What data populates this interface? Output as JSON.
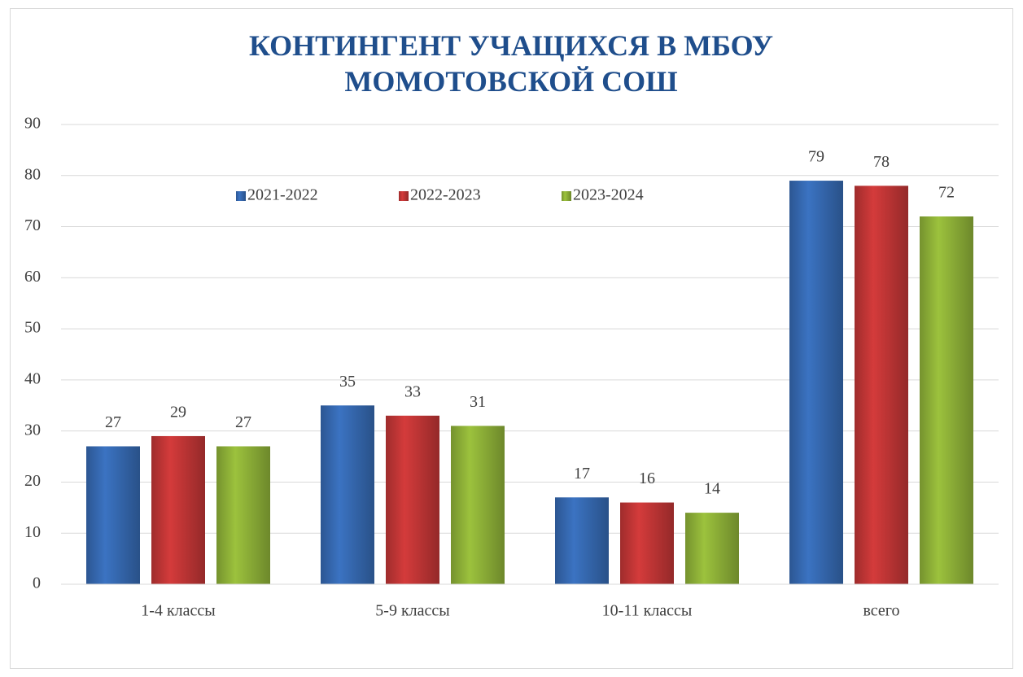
{
  "chart_data": {
    "type": "bar",
    "title": "КОНТИНГЕНТ УЧАЩИХСЯ В МБОУ МОМОТОВСКОЙ СОШ",
    "categories": [
      "1-4 классы",
      "5-9 классы",
      "10-11 классы",
      "всего"
    ],
    "series": [
      {
        "name": "2021-2022",
        "color": "#3b73c2",
        "values": [
          27,
          35,
          17,
          79
        ]
      },
      {
        "name": "2022-2023",
        "color": "#d43b3b",
        "values": [
          29,
          33,
          16,
          78
        ]
      },
      {
        "name": "2023-2024",
        "color": "#9cc23d",
        "values": [
          27,
          31,
          14,
          72
        ]
      }
    ],
    "ylim": [
      0,
      90
    ],
    "yticks": [
      0,
      10,
      20,
      30,
      40,
      50,
      60,
      70,
      80,
      90
    ],
    "grid": true,
    "legend": "top",
    "data_labels": true
  }
}
